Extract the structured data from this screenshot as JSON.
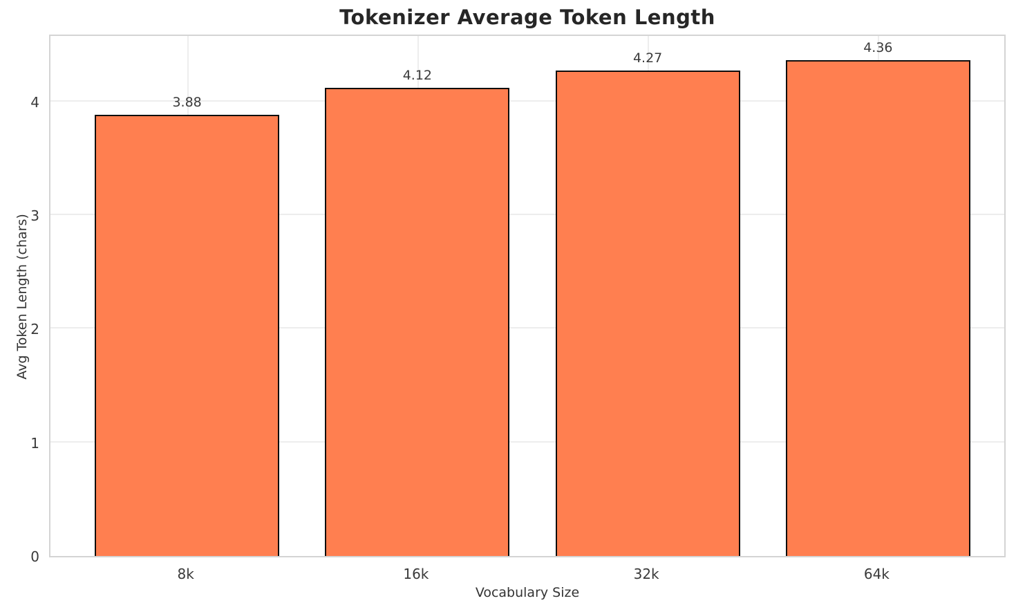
{
  "chart_data": {
    "type": "bar",
    "title": "Tokenizer Average Token Length",
    "xlabel": "Vocabulary Size",
    "ylabel": "Avg Token Length (chars)",
    "categories": [
      "8k",
      "16k",
      "32k",
      "64k"
    ],
    "values": [
      3.88,
      4.12,
      4.27,
      4.36
    ],
    "value_labels": [
      "3.88",
      "4.12",
      "4.27",
      "4.36"
    ],
    "yticks": [
      0,
      1,
      2,
      3,
      4
    ],
    "ylim": [
      0,
      4.6
    ],
    "grid": true,
    "legend": false,
    "bar_color": "#FF7F50",
    "bar_edge_color": "#0d0d0d",
    "grid_color": "#ededed",
    "spine_color": "#d4d4d4",
    "title_color": "#262626",
    "tick_label_color": "#3a3a3a"
  }
}
